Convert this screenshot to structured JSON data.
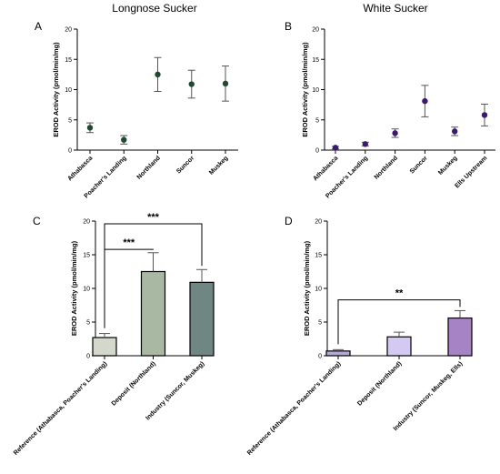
{
  "figure_titles": {
    "left": "Longnose Sucker",
    "right": "White Sucker"
  },
  "chart_data": [
    {
      "panel": "A",
      "type": "scatter",
      "title": "Longnose Sucker",
      "ylabel": "EROD Activity (pmol/min/mg)",
      "xlabel": "",
      "ylim": [
        0,
        20
      ],
      "yticks": [
        0,
        5,
        10,
        15,
        20
      ],
      "marker_color": "#1f4a30",
      "categories": [
        "Athabasca",
        "Poacher's Landing",
        "Northland",
        "Suncor",
        "Muskeg"
      ],
      "values": [
        3.7,
        1.7,
        12.5,
        10.9,
        11.0
      ],
      "errors": [
        0.8,
        0.7,
        2.8,
        2.3,
        2.9
      ]
    },
    {
      "panel": "B",
      "type": "scatter",
      "title": "White Sucker",
      "ylabel": "EROD Activity (pmol/min/mg)",
      "xlabel": "",
      "ylim": [
        0,
        20
      ],
      "yticks": [
        0,
        5,
        10,
        15,
        20
      ],
      "marker_color": "#3b1a6e",
      "categories": [
        "Athabasca",
        "Poacher's Landing",
        "Northland",
        "Suncor",
        "Muskeg",
        "Ells Upstream"
      ],
      "values": [
        0.4,
        1.0,
        2.8,
        8.1,
        3.1,
        5.8
      ],
      "errors": [
        0.2,
        0.3,
        0.7,
        2.6,
        0.7,
        1.8
      ]
    },
    {
      "panel": "C",
      "type": "bar",
      "ylabel": "EROD Activity (pmol/min/mg)",
      "xlabel": "",
      "ylim": [
        0,
        20
      ],
      "yticks": [
        0,
        5,
        10,
        15,
        20
      ],
      "categories": [
        "Reference (Athabasca, Poacher's Landing)",
        "Deposit (Northland)",
        "Industry (Suncor, Muskeg)"
      ],
      "values": [
        2.7,
        12.5,
        10.9
      ],
      "errors": [
        0.6,
        2.8,
        1.9
      ],
      "colors": [
        "#d4d7cb",
        "#a9b8a2",
        "#6f8683"
      ],
      "significance": [
        {
          "from": 0,
          "to": 1,
          "label": "***"
        },
        {
          "from": 0,
          "to": 2,
          "label": "***"
        }
      ]
    },
    {
      "panel": "D",
      "type": "bar",
      "ylabel": "EROD Activity (pmol/min/mg)",
      "xlabel": "",
      "ylim": [
        0,
        20
      ],
      "yticks": [
        0,
        5,
        10,
        15,
        20
      ],
      "categories": [
        "Reference (Athabasca, Poacher's Landing)",
        "Deposit (Northland)",
        "Industry (Suncor, Muskeg, Ells)"
      ],
      "values": [
        0.7,
        2.8,
        5.6
      ],
      "errors": [
        0.2,
        0.7,
        1.1
      ],
      "colors": [
        "#b4a8d8",
        "#d3c9f3",
        "#a683c4"
      ],
      "significance": [
        {
          "from": 0,
          "to": 2,
          "label": "**"
        }
      ]
    }
  ]
}
